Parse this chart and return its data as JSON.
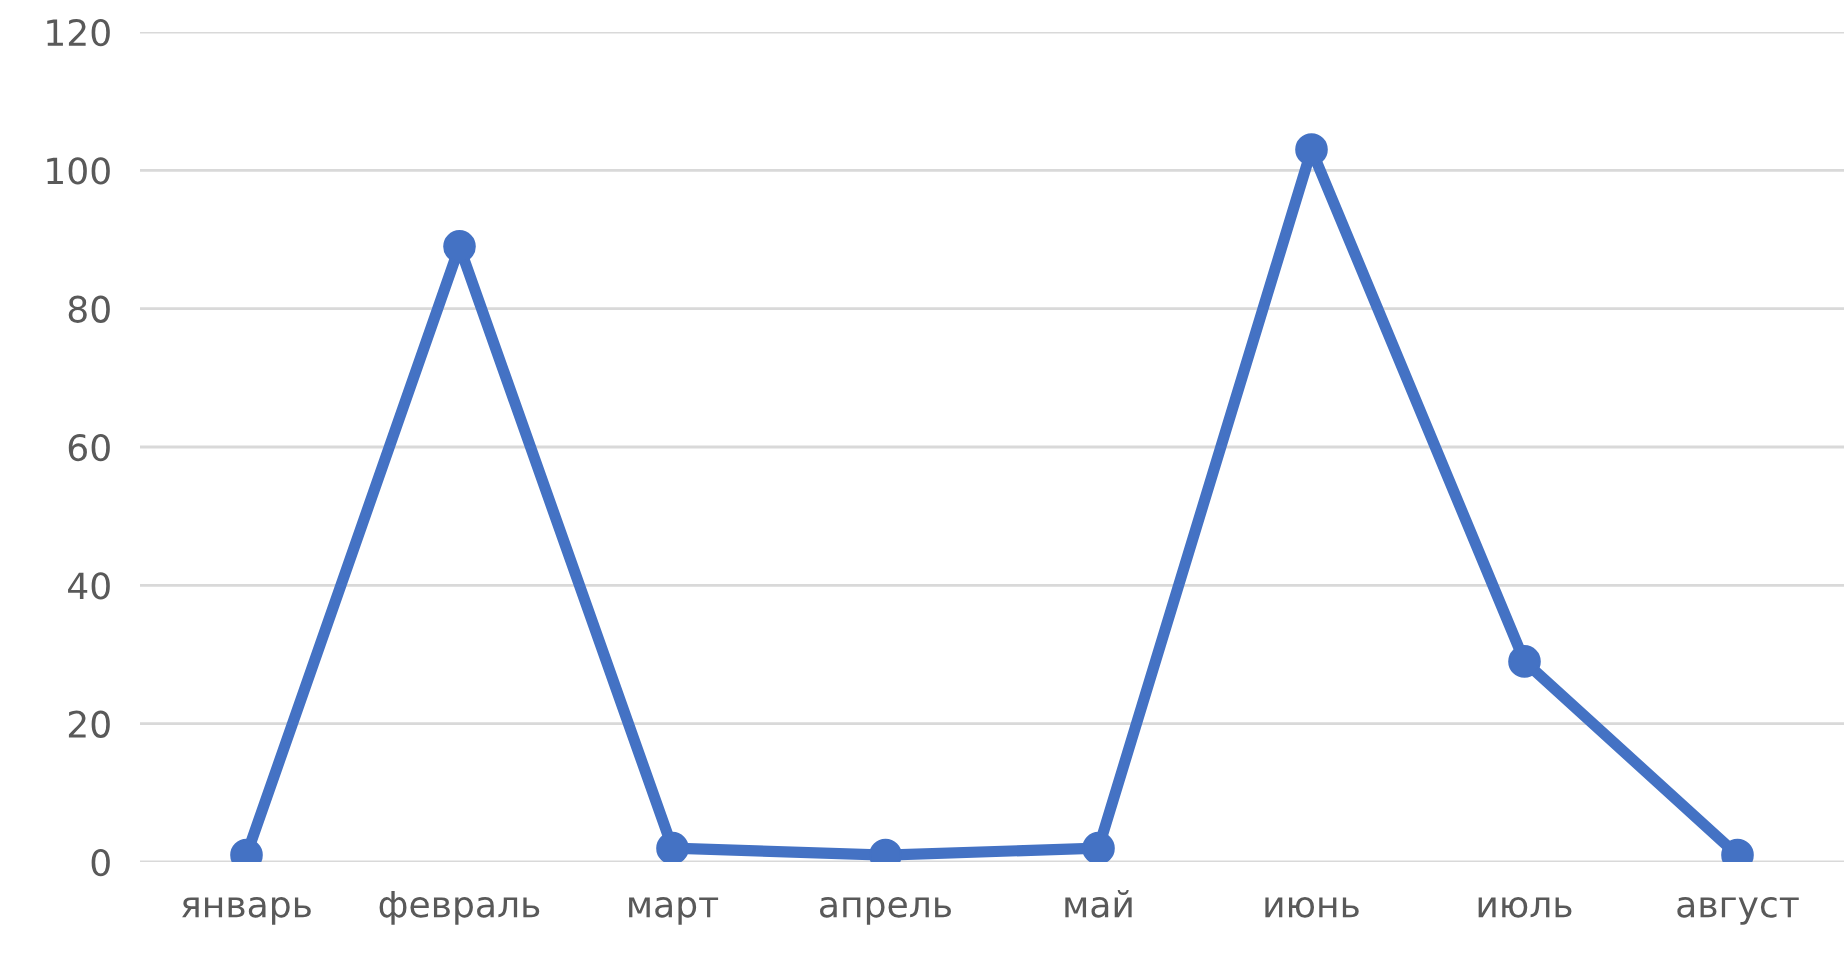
{
  "chart_data": {
    "type": "line",
    "categories": [
      "январь",
      "февраль",
      "март",
      "апрель",
      "май",
      "июнь",
      "июль",
      "август"
    ],
    "series": [
      {
        "color": "#4472c4",
        "values": [
          1,
          89,
          2,
          1,
          2,
          103,
          29,
          1
        ]
      }
    ],
    "ylim": [
      0,
      120
    ],
    "yticks": [
      0,
      20,
      40,
      60,
      80,
      100,
      120
    ],
    "grid": "y",
    "marker": "circle",
    "line_style": "solid"
  }
}
